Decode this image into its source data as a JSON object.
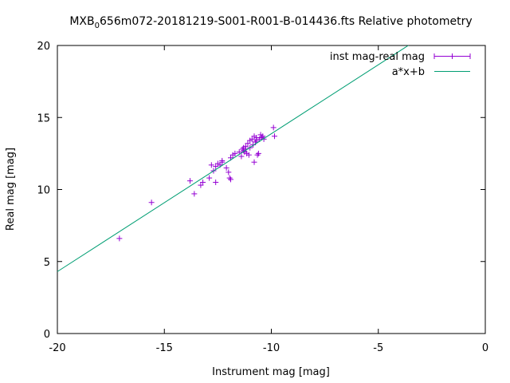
{
  "chart_data": {
    "type": "scatter",
    "title_main": "MXB",
    "title_sub": "0",
    "title_rest": "656m072-20181219-S001-R001-B-014436.fts Relative photometry",
    "xlabel": "Instrument mag [mag]",
    "ylabel": "Real mag [mag]",
    "xlim": [
      -20,
      0
    ],
    "ylim": [
      0,
      20
    ],
    "xticks": [
      -20,
      -15,
      -10,
      -5,
      0
    ],
    "yticks": [
      0,
      5,
      10,
      15,
      20
    ],
    "legend_placement": "top-right",
    "grid": false,
    "series": [
      {
        "name": "inst mag-real mag",
        "kind": "points",
        "color": "#9400d3",
        "x": [
          -17.1,
          -15.6,
          -13.8,
          -13.6,
          -13.3,
          -13.2,
          -12.9,
          -12.8,
          -12.7,
          -12.6,
          -12.6,
          -12.5,
          -12.4,
          -12.3,
          -12.3,
          -12.1,
          -12.0,
          -11.95,
          -11.9,
          -11.9,
          -11.8,
          -11.7,
          -11.5,
          -11.4,
          -11.35,
          -11.3,
          -11.3,
          -11.25,
          -11.2,
          -11.2,
          -11.15,
          -11.1,
          -11.05,
          -11.0,
          -11.0,
          -10.9,
          -10.85,
          -10.8,
          -10.8,
          -10.75,
          -10.7,
          -10.7,
          -10.65,
          -10.6,
          -10.55,
          -10.5,
          -10.45,
          -10.4,
          -10.35,
          -9.9,
          -9.85
        ],
        "y": [
          6.6,
          9.1,
          10.6,
          9.7,
          10.3,
          10.5,
          10.8,
          11.7,
          11.3,
          11.6,
          10.5,
          11.8,
          11.7,
          11.9,
          12.0,
          11.5,
          11.2,
          10.8,
          10.7,
          12.2,
          12.4,
          12.5,
          12.6,
          12.3,
          12.8,
          12.7,
          12.9,
          12.6,
          13.0,
          12.8,
          12.5,
          13.2,
          12.4,
          13.4,
          12.9,
          13.5,
          13.1,
          11.9,
          13.7,
          13.3,
          13.6,
          13.4,
          12.4,
          12.5,
          13.5,
          13.8,
          13.6,
          13.7,
          13.5,
          14.3,
          13.7
        ]
      },
      {
        "name": "a*x+b",
        "kind": "line",
        "color": "#009e73",
        "x": [
          -20,
          -3.6
        ],
        "y": [
          4.3,
          20
        ]
      }
    ]
  }
}
